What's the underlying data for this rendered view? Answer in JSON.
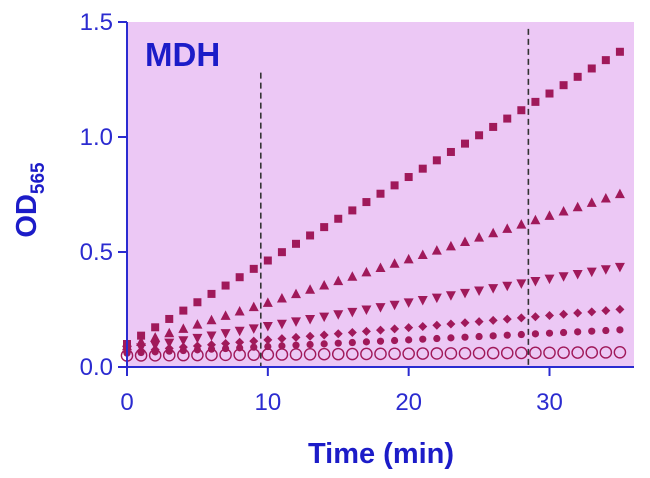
{
  "chart_data": {
    "type": "scatter",
    "title": "MDH",
    "xlabel": "Time (min)",
    "ylabel_main": "OD",
    "ylabel_sub": "565",
    "xlim": [
      0,
      36
    ],
    "ylim": [
      0,
      1.5
    ],
    "x_ticks": [
      0,
      10,
      20,
      30
    ],
    "x_tick_labels": [
      "0",
      "10",
      "20",
      "30"
    ],
    "y_ticks": [
      0,
      0.5,
      1.0,
      1.5
    ],
    "y_tick_labels": [
      "0.0",
      "0.5",
      "1.0",
      "1.5"
    ],
    "reference_lines_x": [
      9.5,
      28.5
    ],
    "x": [
      0,
      1,
      2,
      3,
      4,
      5,
      6,
      7,
      8,
      9,
      10,
      11,
      12,
      13,
      14,
      15,
      16,
      17,
      18,
      19,
      20,
      21,
      22,
      23,
      24,
      25,
      26,
      27,
      28,
      29,
      30,
      31,
      32,
      33,
      34,
      35
    ],
    "series": [
      {
        "marker": "square",
        "y0": 0.1,
        "slope": 0.0363
      },
      {
        "marker": "triangle-up",
        "y0": 0.09,
        "slope": 0.0189
      },
      {
        "marker": "triangle-down",
        "y0": 0.075,
        "slope": 0.0103
      },
      {
        "marker": "diamond",
        "y0": 0.065,
        "slope": 0.0053
      },
      {
        "marker": "circle-filled",
        "y0": 0.06,
        "slope": 0.0029
      },
      {
        "marker": "circle-open",
        "y0": 0.05,
        "slope": 0.0004
      }
    ],
    "colors": {
      "plot_background": "#ecc8f5",
      "marker": "#a0195a",
      "axis": "#2b2bd0",
      "text": "#1c1cc8",
      "reference_line": "#333333"
    }
  }
}
